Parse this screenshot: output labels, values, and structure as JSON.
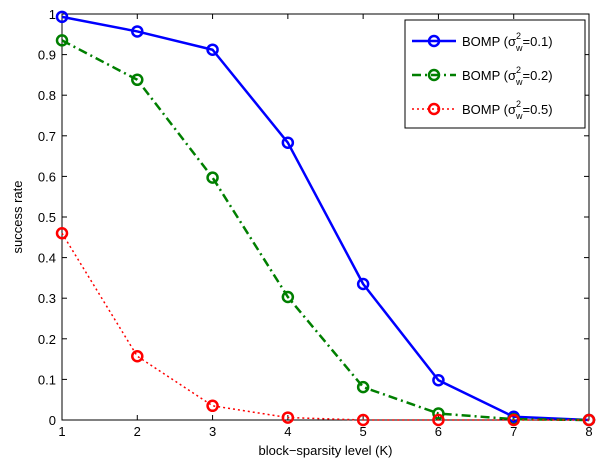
{
  "chart_data": {
    "type": "line",
    "title": "",
    "xlabel": "block−sparsity level (K)",
    "ylabel": "success rate",
    "xlim": [
      1,
      8
    ],
    "ylim": [
      0,
      1
    ],
    "xticks": [
      1,
      2,
      3,
      4,
      5,
      6,
      7,
      8
    ],
    "yticks": [
      0,
      0.1,
      0.2,
      0.3,
      0.4,
      0.5,
      0.6,
      0.7,
      0.8,
      0.9,
      1
    ],
    "x": [
      1,
      2,
      3,
      4,
      5,
      6,
      7,
      8
    ],
    "grid": false,
    "legend_position": "top-right",
    "series": [
      {
        "name": "BOMP (σw2=0.1)",
        "legend_main": "BOMP (σ",
        "legend_sub": "w",
        "legend_sup": "2",
        "legend_tail": "=0.1)",
        "values": [
          0.993,
          0.957,
          0.912,
          0.683,
          0.335,
          0.098,
          0.008,
          0.0
        ],
        "color": "#0000ff",
        "line_style": "solid",
        "line_width": 2.5,
        "marker": "circle"
      },
      {
        "name": "BOMP (σw2=0.2)",
        "legend_main": "BOMP (σ",
        "legend_sub": "w",
        "legend_sup": "2",
        "legend_tail": "=0.2)",
        "values": [
          0.935,
          0.838,
          0.597,
          0.303,
          0.081,
          0.016,
          0.002,
          0.0
        ],
        "color": "#007f00",
        "line_style": "dashdot",
        "line_width": 2.5,
        "marker": "circle"
      },
      {
        "name": "BOMP (σw2=0.5)",
        "legend_main": "BOMP (σ",
        "legend_sub": "w",
        "legend_sup": "2",
        "legend_tail": "=0.5)",
        "values": [
          0.46,
          0.157,
          0.035,
          0.006,
          0.0,
          0.0,
          0.0,
          0.0
        ],
        "color": "#ff0000",
        "line_style": "dotted",
        "line_width": 1.5,
        "marker": "circle"
      }
    ]
  }
}
